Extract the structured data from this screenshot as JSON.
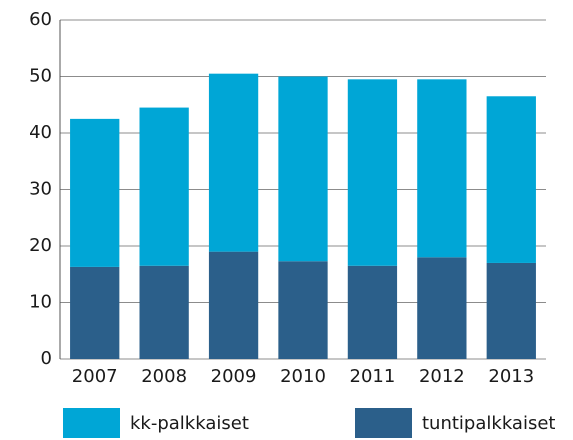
{
  "chart_data": {
    "type": "stacked_bar",
    "categories": [
      "2007",
      "2008",
      "2009",
      "2010",
      "2011",
      "2012",
      "2013"
    ],
    "series": [
      {
        "name": "kk-palkkaiset",
        "color": "#00a6d6",
        "values": [
          26.2,
          28,
          31.5,
          32.7,
          33,
          31.5,
          29.5
        ]
      },
      {
        "name": "tuntipalkkaiset",
        "color": "#2b5f8a",
        "values": [
          16.3,
          16.5,
          19,
          17.3,
          16.5,
          18,
          17
        ]
      }
    ],
    "ylim": [
      0,
      60
    ],
    "yticks": [
      0,
      10,
      20,
      30,
      40,
      50,
      60
    ],
    "grid": true,
    "legend": "bottom"
  }
}
